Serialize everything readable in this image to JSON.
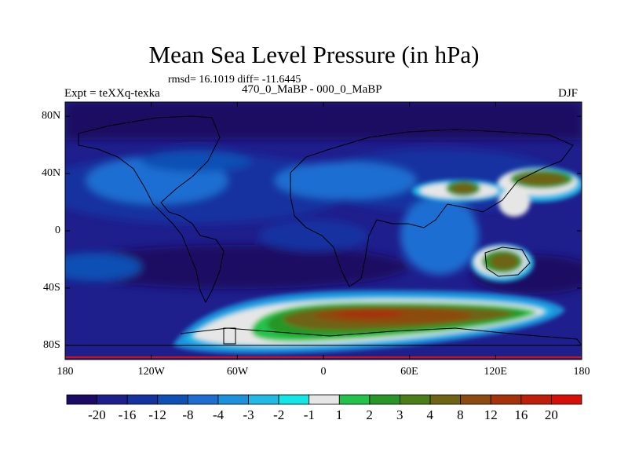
{
  "title": "Mean Sea Level Pressure (in hPa)",
  "stats": "rmsd= 16.1019 diff= -11.6445",
  "experiment": "Expt = teXXq-texka",
  "comparison": "470_0_MaBP - 000_0_MaBP",
  "season": "DJF",
  "map": {
    "lon_range": [
      -180,
      180
    ],
    "lat_range": [
      -90,
      90
    ],
    "x_ticks": [
      {
        "lon": -180,
        "label": "180"
      },
      {
        "lon": -120,
        "label": "120W"
      },
      {
        "lon": -60,
        "label": "60W"
      },
      {
        "lon": 0,
        "label": "0"
      },
      {
        "lon": 60,
        "label": "60E"
      },
      {
        "lon": 120,
        "label": "120E"
      },
      {
        "lon": 180,
        "label": "180"
      }
    ],
    "y_ticks": [
      {
        "lat": 80,
        "label": "80N"
      },
      {
        "lat": 40,
        "label": "40N"
      },
      {
        "lat": 0,
        "label": "0"
      },
      {
        "lat": -40,
        "label": "40S"
      },
      {
        "lat": -80,
        "label": "80S"
      }
    ],
    "background_color": "#1e1e8c"
  },
  "colorbar": {
    "colors": [
      "#1b0b64",
      "#1e1e8c",
      "#1432a0",
      "#0f50b4",
      "#1e6ed2",
      "#1e91dc",
      "#23b9e6",
      "#14e6e6",
      "#e6e6e6",
      "#23c34b",
      "#289628",
      "#4b7d19",
      "#6e6414",
      "#8c4b0f",
      "#a5320a",
      "#be1e0a",
      "#d70f0a"
    ],
    "labels": [
      "-20",
      "-16",
      "-12",
      "-8",
      "-4",
      "-3",
      "-2",
      "-1",
      "1",
      "2",
      "3",
      "4",
      "8",
      "12",
      "16",
      "20"
    ]
  }
}
